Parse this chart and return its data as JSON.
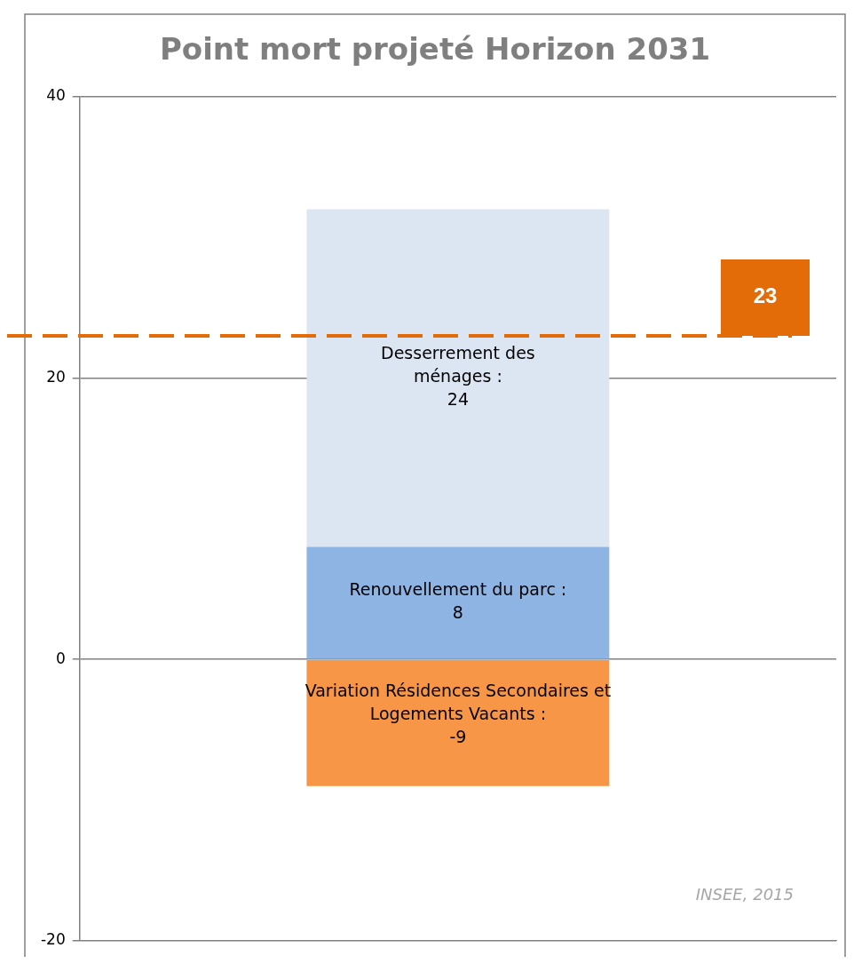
{
  "chart_data": {
    "type": "bar",
    "title": "Point mort projeté Horizon 2031",
    "categories": [
      null
    ],
    "stacked": true,
    "series": [
      {
        "name": "Renouvellement du parc :",
        "color": "#8eb4e3",
        "values": [
          8
        ]
      },
      {
        "name": "Desserrement des ménages :",
        "color": "#dce6f2",
        "values": [
          24
        ]
      },
      {
        "name": "Variation Résidences Secondaires et Logements Vacants :",
        "color": "#f79646",
        "values": [
          -9
        ]
      }
    ],
    "ylim": [
      -20,
      40
    ],
    "yticks": [
      -20,
      0,
      20,
      40
    ],
    "grid": "y",
    "legend": false,
    "data_labels": true,
    "ref_lines": [
      {
        "axis": "y",
        "value": 23,
        "label": "23",
        "color": "#e36c09",
        "line_style": "dashed"
      }
    ],
    "annotations": [
      "INSEE, 2015"
    ]
  }
}
